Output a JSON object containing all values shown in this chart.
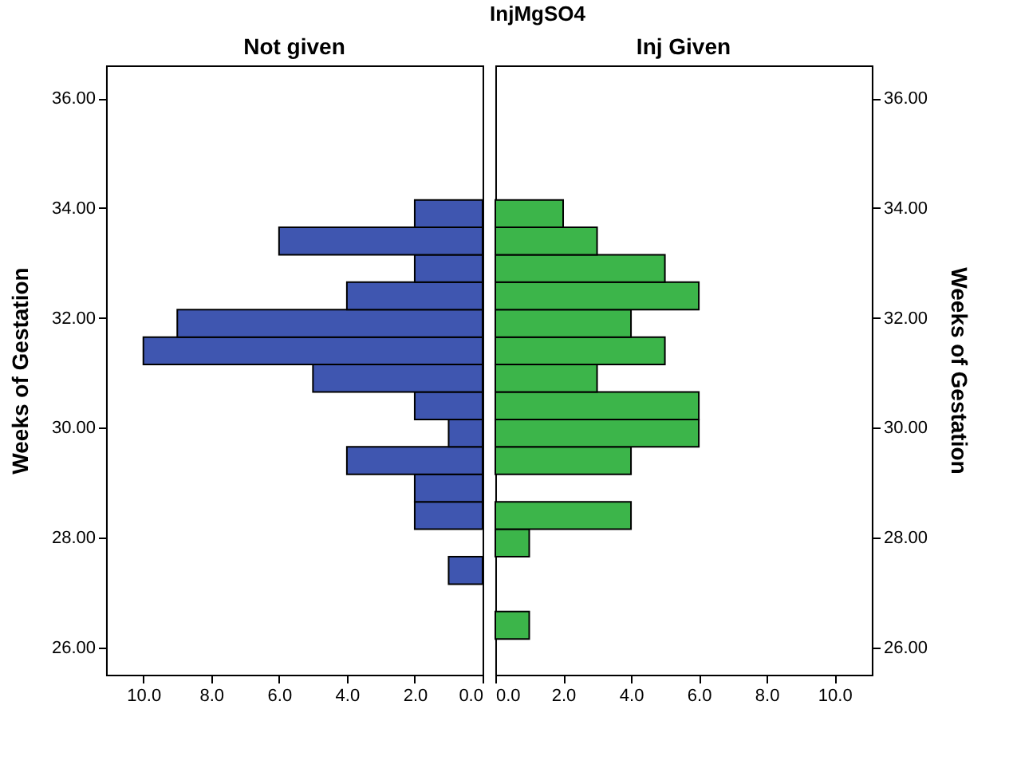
{
  "chart_data": [
    {
      "type": "other",
      "title": "InjMgSO4"
    },
    {
      "type": "histogram",
      "orientation": "horizontal",
      "title": "Not given",
      "ylabel": "Weeks of Gestation",
      "color": "#3f56b0",
      "bins": [
        26.15,
        26.65,
        27.15,
        27.65,
        28.15,
        28.65,
        29.15,
        29.65,
        30.15,
        30.65,
        31.15,
        31.65,
        32.15,
        32.65,
        33.15,
        33.65,
        34.15
      ],
      "values": [
        0,
        0,
        1,
        0,
        2,
        2,
        4,
        1,
        2,
        5,
        10,
        9,
        4,
        2,
        6,
        2
      ],
      "xlim": [
        11.1,
        0
      ],
      "xticks": [
        {
          "value": 10,
          "label": "10.0"
        },
        {
          "value": 8,
          "label": "8.0"
        },
        {
          "value": 6,
          "label": "6.0"
        },
        {
          "value": 4,
          "label": "4.0"
        },
        {
          "value": 2,
          "label": "2.0"
        },
        {
          "value": 0,
          "label": "0.0"
        }
      ],
      "ylim": [
        25.5,
        36.6
      ],
      "yticks": [
        {
          "value": 26,
          "label": "26.00"
        },
        {
          "value": 28,
          "label": "28.00"
        },
        {
          "value": 30,
          "label": "30.00"
        },
        {
          "value": 32,
          "label": "32.00"
        },
        {
          "value": 34,
          "label": "34.00"
        },
        {
          "value": 36,
          "label": "36.00"
        }
      ],
      "grid": false
    },
    {
      "type": "histogram",
      "orientation": "horizontal",
      "title": "Inj Given",
      "ylabel": "Weeks of Gestation",
      "color": "#3cb54a",
      "bins": [
        26.15,
        26.65,
        27.15,
        27.65,
        28.15,
        28.65,
        29.15,
        29.65,
        30.15,
        30.65,
        31.15,
        31.65,
        32.15,
        32.65,
        33.15,
        33.65,
        34.15
      ],
      "values": [
        1,
        0,
        0,
        1,
        4,
        0,
        4,
        6,
        6,
        3,
        5,
        4,
        6,
        5,
        3,
        2
      ],
      "xlim": [
        0,
        11.1
      ],
      "xticks": [
        {
          "value": 0,
          "label": "0.0"
        },
        {
          "value": 2,
          "label": "2.0"
        },
        {
          "value": 4,
          "label": "4.0"
        },
        {
          "value": 6,
          "label": "6.0"
        },
        {
          "value": 8,
          "label": "8.0"
        },
        {
          "value": 10,
          "label": "10.0"
        }
      ],
      "ylim": [
        25.5,
        36.6
      ],
      "yticks": [
        {
          "value": 26,
          "label": "26.00"
        },
        {
          "value": 28,
          "label": "28.00"
        },
        {
          "value": 30,
          "label": "30.00"
        },
        {
          "value": 32,
          "label": "32.00"
        },
        {
          "value": 34,
          "label": "34.00"
        },
        {
          "value": 36,
          "label": "36.00"
        }
      ],
      "grid": false
    }
  ]
}
